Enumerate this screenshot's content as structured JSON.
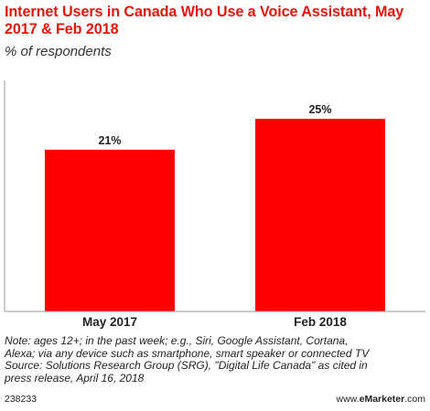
{
  "chart_data": {
    "type": "bar",
    "title": "Internet Users in Canada Who Use a Voice Assistant, May 2017 & Feb 2018",
    "subtitle": "% of respondents",
    "categories": [
      "May 2017",
      "Feb 2018"
    ],
    "values": [
      21,
      25
    ],
    "data_labels": [
      "21%",
      "25%"
    ],
    "ylim": [
      0,
      30
    ],
    "grid": false,
    "legend": "none"
  },
  "colors": {
    "bar": "#ff0000",
    "title": "#e0180c",
    "axis": "#999999"
  },
  "notes": {
    "line1": "Note: ages 12+; in the past week; e.g., Siri, Google Assistant, Cortana,",
    "line2": "Alexa; via any device such as smartphone, smart speaker or connected TV",
    "line3": "Source: Solutions Research Group (SRG), \"Digital Life Canada\" as cited in",
    "line4": "press release, April 16, 2018"
  },
  "footer": {
    "chart_id": "238233",
    "brand_prefix": "www.",
    "brand_name": "eMarketer",
    "brand_suffix": ".com"
  }
}
